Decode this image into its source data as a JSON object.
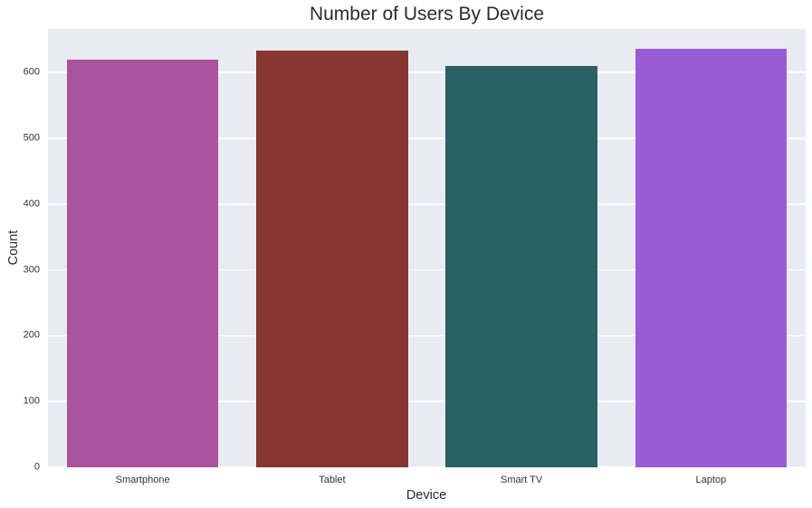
{
  "chart_data": {
    "type": "bar",
    "title": "Number of Users By Device",
    "xlabel": "Device",
    "ylabel": "Count",
    "categories": [
      "Smartphone",
      "Tablet",
      "Smart TV",
      "Laptop"
    ],
    "values": [
      620,
      633,
      610,
      636
    ],
    "bar_colors": [
      "#ab549d",
      "#873732",
      "#2a5f66",
      "#9a5cd6"
    ],
    "yticks": [
      0,
      100,
      200,
      300,
      400,
      500,
      600
    ],
    "ylim": [
      0,
      666
    ],
    "bar_width_fraction": 0.8,
    "grid": "horizontal",
    "legend_position": "none"
  },
  "style": {
    "plot_background": "#eaeaf2",
    "gridline_color": "#ffffff",
    "figure_background": "#ffffff",
    "text_color": "#2b2b2b",
    "tick_color": "#333333"
  }
}
